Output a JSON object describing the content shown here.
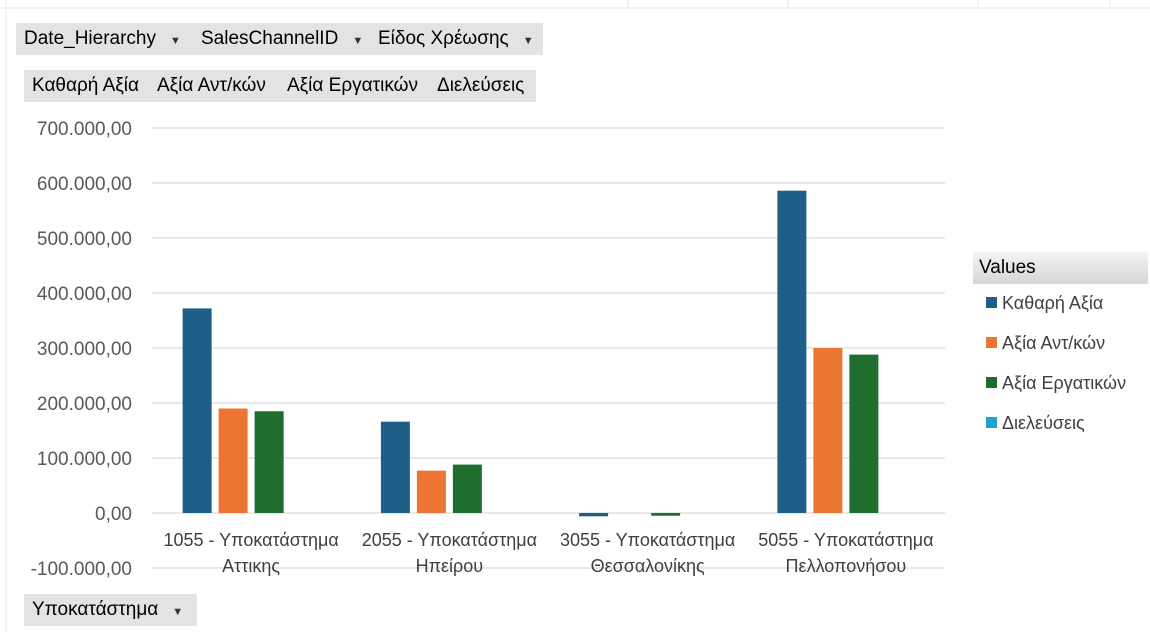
{
  "filters": {
    "report": [
      {
        "label": "Date_Hierarchy",
        "arrow": "▼"
      },
      {
        "label": "SalesChannelID",
        "arrow": "▼"
      },
      {
        "label": "Είδος Χρέωσης",
        "arrow": "▼"
      }
    ],
    "values": [
      "Καθαρή Αξία",
      "Αξία Αντ/κών",
      "Αξία Εργατικών",
      "Διελεύσεις"
    ],
    "axis": {
      "label": "Υποκατάστημα",
      "arrow": "▼"
    }
  },
  "legend": {
    "title": "Values"
  },
  "colors": {
    "net": "#1f5f87",
    "parts": "#ed7534",
    "labor": "#1f6e2e",
    "passes": "#1da1d6"
  },
  "chart_data": {
    "type": "bar",
    "categories": [
      [
        "1055 - Υποκατάστημα",
        "Αττικης"
      ],
      [
        "2055 - Υποκατάστημα",
        "Ηπείρου"
      ],
      [
        "3055 - Υποκατάστημα",
        "Θεσσαλονίκης"
      ],
      [
        "5055 - Υποκατάστημα",
        "Πελλοπονήσου"
      ]
    ],
    "series": [
      {
        "name": "Καθαρή Αξία",
        "values": [
          372000,
          166000,
          -6000,
          586000
        ]
      },
      {
        "name": "Αξία Αντ/κών",
        "values": [
          190000,
          77000,
          0,
          300000
        ]
      },
      {
        "name": "Αξία Εργατικών",
        "values": [
          185000,
          88000,
          -5000,
          288000
        ]
      },
      {
        "name": "Διελεύσεις",
        "values": [
          0,
          0,
          0,
          0
        ]
      }
    ],
    "ylim": [
      -100000,
      700000
    ],
    "yticks": [
      700000,
      600000,
      500000,
      400000,
      300000,
      200000,
      100000,
      0,
      -100000
    ],
    "ytick_labels": [
      "700.000,00",
      "600.000,00",
      "500.000,00",
      "400.000,00",
      "300.000,00",
      "200.000,00",
      "100.000,00",
      "0,00",
      "-100.000,00"
    ],
    "grid": true,
    "legend_position": "right"
  }
}
